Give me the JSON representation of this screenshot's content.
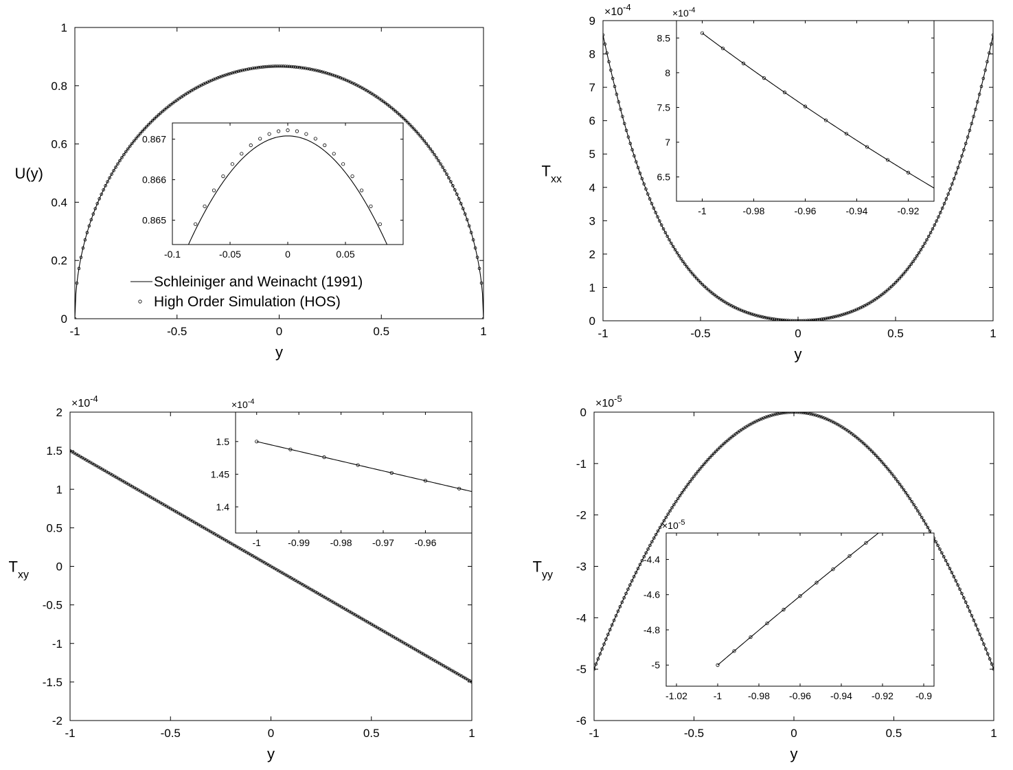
{
  "panels": [
    {
      "id": "u",
      "xlabel": "y",
      "ylabel_main": "U(y)",
      "ylabel_sub": "",
      "exponent": "",
      "xlim": [
        -1,
        1
      ],
      "ylim": [
        0,
        1
      ],
      "xticks": [
        -1,
        -0.5,
        0,
        0.5,
        1
      ],
      "xtick_labels": [
        "-1",
        "-0.5",
        "0",
        "0.5",
        "1"
      ],
      "yticks": [
        0,
        0.2,
        0.4,
        0.6,
        0.8,
        1
      ],
      "ytick_labels": [
        "0",
        "0.2",
        "0.4",
        "0.6",
        "0.8",
        "1"
      ],
      "profile": "parabola_u",
      "inset": {
        "exponent": "",
        "xlim": [
          -0.1,
          0.1
        ],
        "ylim": [
          0.8644,
          0.8674
        ],
        "xticks": [
          -0.1,
          -0.05,
          0,
          0.05
        ],
        "xtick_labels": [
          "-0.1",
          "-0.05",
          "0",
          "0.05"
        ],
        "yticks": [
          0.865,
          0.866,
          0.867
        ],
        "ytick_labels": [
          "0.865",
          "0.866",
          "0.867"
        ],
        "line_profile": "inset_u_line",
        "marker_profile": "inset_u_markers",
        "line_range": [
          -0.1,
          0.1
        ],
        "marker_x": [
          -0.08,
          -0.072,
          -0.064,
          -0.056,
          -0.048,
          -0.04,
          -0.032,
          -0.024,
          -0.016,
          -0.008,
          0.0,
          0.008,
          0.016,
          0.024,
          0.032,
          0.04,
          0.048,
          0.056,
          0.064,
          0.072,
          0.08
        ]
      },
      "legend": {
        "entries": [
          {
            "label": "Schleiniger and Weinacht (1991)",
            "style": "line"
          },
          {
            "label": "High Order Simulation (HOS)",
            "style": "marker"
          }
        ]
      }
    },
    {
      "id": "txx",
      "xlabel": "y",
      "ylabel_main": "T",
      "ylabel_sub": "xx",
      "exponent": "-4",
      "xlim": [
        -1,
        1
      ],
      "ylim": [
        0,
        9
      ],
      "xticks": [
        -1,
        -0.5,
        0,
        0.5,
        1
      ],
      "xtick_labels": [
        "-1",
        "-0.5",
        "0",
        "0.5",
        "1"
      ],
      "yticks": [
        0,
        1,
        2,
        3,
        4,
        5,
        6,
        7,
        8,
        9
      ],
      "ytick_labels": [
        "0",
        "1",
        "2",
        "3",
        "4",
        "5",
        "6",
        "7",
        "8",
        "9"
      ],
      "profile": "txx",
      "inset": {
        "exponent": "-4",
        "xlim": [
          -1.01,
          -0.91
        ],
        "ylim": [
          6.15,
          8.75
        ],
        "xticks": [
          -1,
          -0.98,
          -0.96,
          -0.94,
          -0.92
        ],
        "xtick_labels": [
          "-1",
          "-0.98",
          "-0.96",
          "-0.94",
          "-0.92"
        ],
        "yticks": [
          6.5,
          7,
          7.5,
          8,
          8.5
        ],
        "ytick_labels": [
          "6.5",
          "7",
          "7.5",
          "8",
          "8.5"
        ],
        "line_profile": "txx",
        "marker_profile": "txx",
        "line_range": [
          -1,
          -0.91
        ],
        "marker_x": [
          -1.0,
          -0.992,
          -0.984,
          -0.976,
          -0.968,
          -0.96,
          -0.952,
          -0.944,
          -0.936,
          -0.928,
          -0.92
        ]
      }
    },
    {
      "id": "txy",
      "xlabel": "y",
      "ylabel_main": "T",
      "ylabel_sub": "xy",
      "exponent": "-4",
      "xlim": [
        -1,
        1
      ],
      "ylim": [
        -2,
        2
      ],
      "xticks": [
        -1,
        -0.5,
        0,
        0.5,
        1
      ],
      "xtick_labels": [
        "-1",
        "-0.5",
        "0",
        "0.5",
        "1"
      ],
      "yticks": [
        -2,
        -1.5,
        -1,
        -0.5,
        0,
        0.5,
        1,
        1.5,
        2
      ],
      "ytick_labels": [
        "-2",
        "-1.5",
        "-1",
        "-0.5",
        "0",
        "0.5",
        "1",
        "1.5",
        "2"
      ],
      "profile": "txy",
      "inset": {
        "exponent": "-4",
        "xlim": [
          -1.005,
          -0.949
        ],
        "ylim": [
          1.36,
          1.545
        ],
        "xticks": [
          -1,
          -0.99,
          -0.98,
          -0.97,
          -0.96
        ],
        "xtick_labels": [
          "-1",
          "-0.99",
          "-0.98",
          "-0.97",
          "-0.96"
        ],
        "yticks": [
          1.4,
          1.45,
          1.5
        ],
        "ytick_labels": [
          "1.4",
          "1.45",
          "1.5"
        ],
        "line_profile": "txy",
        "marker_profile": "txy",
        "line_range": [
          -1,
          -0.949
        ],
        "marker_x": [
          -1.0,
          -0.992,
          -0.984,
          -0.976,
          -0.968,
          -0.96,
          -0.952
        ]
      }
    },
    {
      "id": "tyy",
      "xlabel": "y",
      "ylabel_main": "T",
      "ylabel_sub": "yy",
      "exponent": "-5",
      "xlim": [
        -1,
        1
      ],
      "ylim": [
        -6,
        0
      ],
      "xticks": [
        -1,
        -0.5,
        0,
        0.5,
        1
      ],
      "xtick_labels": [
        "-1",
        "-0.5",
        "0",
        "0.5",
        "1"
      ],
      "yticks": [
        -6,
        -5,
        -4,
        -3,
        -2,
        -1,
        0
      ],
      "ytick_labels": [
        "-6",
        "-5",
        "-4",
        "-3",
        "-2",
        "-1",
        "0"
      ],
      "profile": "tyy",
      "inset": {
        "exponent": "-5",
        "xlim": [
          -1.025,
          -0.895
        ],
        "ylim": [
          -5.12,
          -4.25
        ],
        "xticks": [
          -1.02,
          -1,
          -0.98,
          -0.96,
          -0.94,
          -0.92,
          -0.9
        ],
        "xtick_labels": [
          "-1.02",
          "-1",
          "-0.98",
          "-0.96",
          "-0.94",
          "-0.92",
          "-0.9"
        ],
        "yticks": [
          -5,
          -4.8,
          -4.6,
          -4.4
        ],
        "ytick_labels": [
          "-5",
          "-4.8",
          "-4.6",
          "-4.4"
        ],
        "line_profile": "tyy",
        "marker_profile": "tyy",
        "line_range": [
          -1,
          -0.92
        ],
        "marker_x": [
          -1.0,
          -0.992,
          -0.984,
          -0.976,
          -0.968,
          -0.96,
          -0.952,
          -0.944,
          -0.936,
          -0.928
        ]
      }
    }
  ],
  "chart_data": [
    {
      "type": "line",
      "title": "",
      "xlabel": "y",
      "ylabel": "U(y)",
      "xlim": [
        -1,
        1
      ],
      "ylim": [
        0,
        1
      ],
      "series": [
        {
          "name": "Schleiniger and Weinacht (1991)",
          "style": "line",
          "x": [
            -1,
            -0.75,
            -0.5,
            -0.25,
            0,
            0.25,
            0.5,
            0.75,
            1
          ],
          "y": [
            0,
            0.57,
            0.75,
            0.84,
            0.867,
            0.84,
            0.75,
            0.57,
            0
          ]
        },
        {
          "name": "High Order Simulation (HOS)",
          "style": "markers",
          "x": [
            -1,
            -0.75,
            -0.5,
            -0.25,
            0,
            0.25,
            0.5,
            0.75,
            1
          ],
          "y": [
            0,
            0.57,
            0.75,
            0.84,
            0.867,
            0.84,
            0.75,
            0.57,
            0
          ]
        }
      ],
      "inset": {
        "xlim": [
          -0.1,
          0.1
        ],
        "ylim": [
          0.8644,
          0.8674
        ],
        "peak_line": 0.86708,
        "peak_markers": 0.86722
      }
    },
    {
      "type": "line",
      "xlabel": "y",
      "ylabel": "T_xx",
      "y_scale_factor": "1e-4",
      "xlim": [
        -1,
        1
      ],
      "ylim": [
        0,
        9
      ],
      "series": [
        {
          "style": "line",
          "x": [
            -1,
            -0.75,
            -0.5,
            -0.25,
            0,
            0.25,
            0.5,
            0.75,
            1
          ],
          "y": [
            8.57,
            3.87,
            1.3,
            0.29,
            0,
            0.29,
            1.3,
            3.87,
            8.57
          ]
        },
        {
          "style": "markers",
          "x": [
            -1,
            -0.75,
            -0.5,
            -0.25,
            0,
            0.25,
            0.5,
            0.75,
            1
          ],
          "y": [
            8.57,
            3.87,
            1.3,
            0.29,
            0,
            0.29,
            1.3,
            3.87,
            8.57
          ]
        }
      ],
      "inset": {
        "xlim": [
          -1.01,
          -0.91
        ],
        "ylim": [
          6.15,
          8.75
        ],
        "points": [
          [
            -1,
            8.57
          ],
          [
            -0.96,
            7.2
          ],
          [
            -0.92,
            6.2
          ]
        ]
      }
    },
    {
      "type": "line",
      "xlabel": "y",
      "ylabel": "T_xy",
      "y_scale_factor": "1e-4",
      "xlim": [
        -1,
        1
      ],
      "ylim": [
        -2,
        2
      ],
      "series": [
        {
          "style": "line",
          "x": [
            -1,
            0,
            1
          ],
          "y": [
            1.5,
            0,
            -1.5
          ]
        },
        {
          "style": "markers",
          "x": [
            -1,
            0,
            1
          ],
          "y": [
            1.5,
            0,
            -1.5
          ]
        }
      ],
      "inset": {
        "xlim": [
          -1.005,
          -0.949
        ],
        "ylim": [
          1.36,
          1.545
        ],
        "points": [
          [
            -1,
            1.5
          ],
          [
            -0.96,
            1.441
          ]
        ]
      }
    },
    {
      "type": "line",
      "xlabel": "y",
      "ylabel": "T_yy",
      "y_scale_factor": "1e-5",
      "xlim": [
        -1,
        1
      ],
      "ylim": [
        -6,
        0
      ],
      "series": [
        {
          "style": "line",
          "x": [
            -1,
            -0.75,
            -0.5,
            -0.25,
            0,
            0.25,
            0.5,
            0.75,
            1
          ],
          "y": [
            -5,
            -2.81,
            -1.25,
            -0.31,
            0,
            -0.31,
            -1.25,
            -2.81,
            -5
          ]
        },
        {
          "style": "markers",
          "x": [
            -1,
            -0.75,
            -0.5,
            -0.25,
            0,
            0.25,
            0.5,
            0.75,
            1
          ],
          "y": [
            -5,
            -2.81,
            -1.25,
            -0.31,
            0,
            -0.31,
            -1.25,
            -2.81,
            -5
          ]
        }
      ],
      "inset": {
        "xlim": [
          -1.025,
          -0.895
        ],
        "ylim": [
          -5.12,
          -4.25
        ],
        "points": [
          [
            -1,
            -5.0
          ],
          [
            -0.96,
            -4.6
          ],
          [
            -0.928,
            -4.28
          ]
        ]
      }
    }
  ]
}
